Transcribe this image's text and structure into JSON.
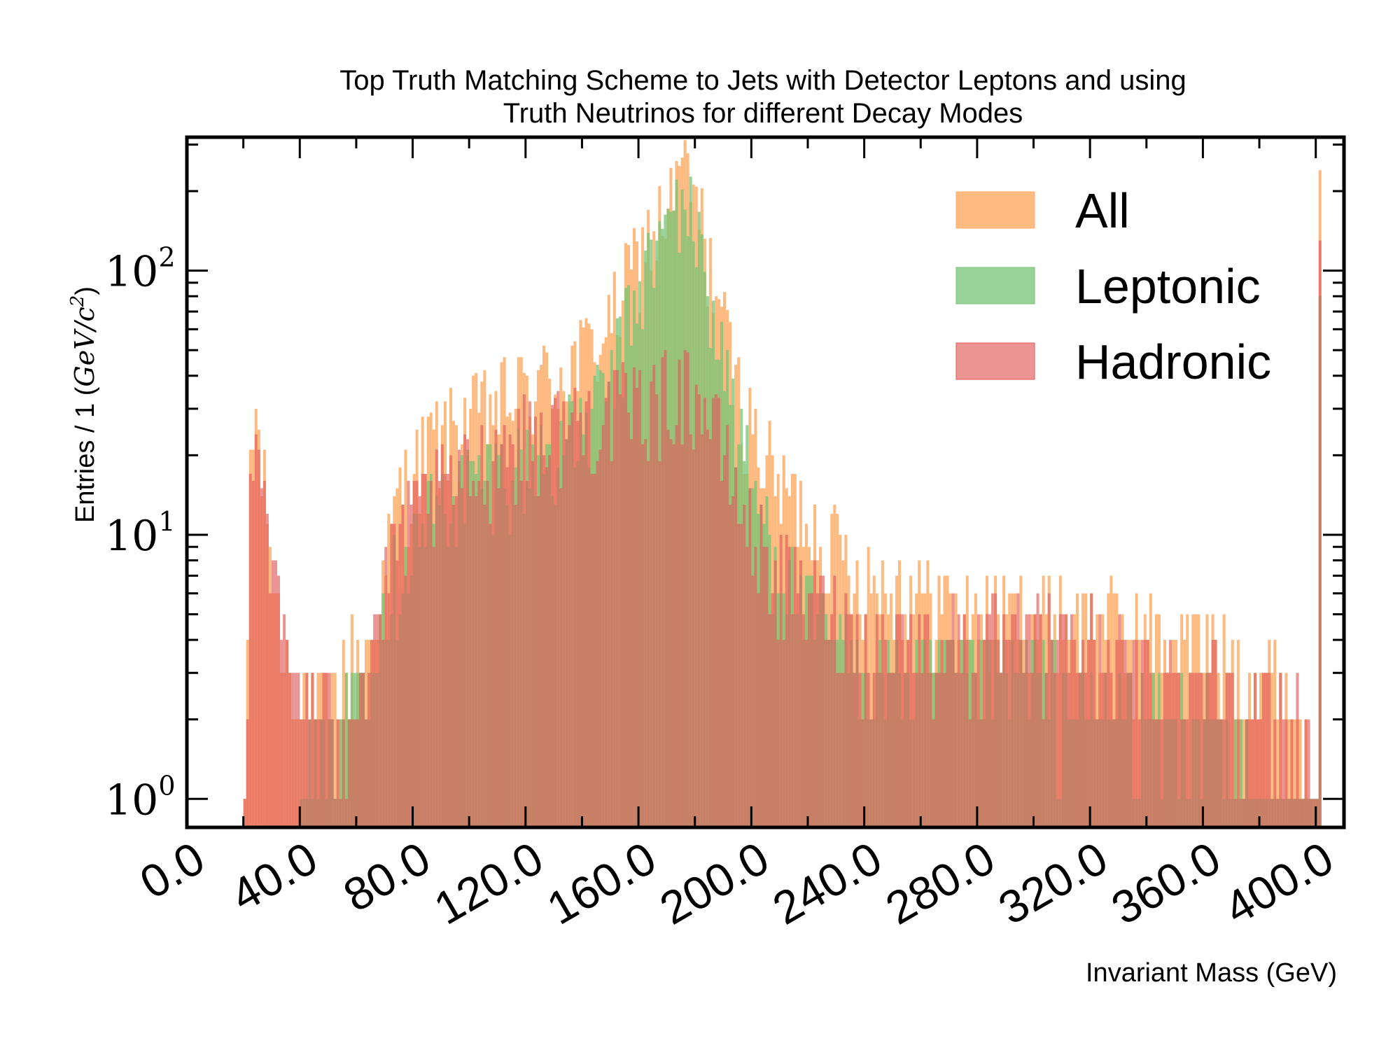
{
  "chart_data": {
    "type": "bar",
    "title_line1": "Top Truth Matching Scheme to Jets with Detector Leptons and using",
    "title_line2": "Truth Neutrinos for different Decay Modes",
    "xlabel": "Invariant Mass (GeV)",
    "ylabel_prefix": "Entries / 1 (",
    "ylabel_unit": "GeV/c",
    "ylabel_sup": "2",
    "ylabel_suffix": ")",
    "yscale": "log",
    "xlim": [
      0,
      410
    ],
    "ylim": [
      0.78,
      320
    ],
    "x_ticks": [
      "0.0",
      "40.0",
      "80.0",
      "120.0",
      "160.0",
      "200.0",
      "240.0",
      "280.0",
      "320.0",
      "360.0",
      "400.0"
    ],
    "y_ticks": [
      {
        "base": "10",
        "exp": "0",
        "value": 1
      },
      {
        "base": "10",
        "exp": "1",
        "value": 10
      },
      {
        "base": "10",
        "exp": "2",
        "value": 100
      }
    ],
    "bin_width": 1,
    "legend_position": "top-right",
    "series": [
      {
        "name": "All",
        "color": "#fdae6b",
        "opacity": 0.85,
        "envelope": [
          [
            20,
            1
          ],
          [
            22,
            20
          ],
          [
            24,
            28
          ],
          [
            28,
            12
          ],
          [
            32,
            5
          ],
          [
            36,
            3
          ],
          [
            45,
            2
          ],
          [
            55,
            3
          ],
          [
            65,
            4
          ],
          [
            75,
            15
          ],
          [
            85,
            22
          ],
          [
            95,
            26
          ],
          [
            110,
            32
          ],
          [
            125,
            38
          ],
          [
            140,
            48
          ],
          [
            150,
            65
          ],
          [
            160,
            120
          ],
          [
            170,
            170
          ],
          [
            175,
            250
          ],
          [
            180,
            180
          ],
          [
            185,
            110
          ],
          [
            190,
            60
          ],
          [
            195,
            35
          ],
          [
            200,
            25
          ],
          [
            210,
            15
          ],
          [
            220,
            12
          ],
          [
            230,
            9
          ],
          [
            240,
            7
          ],
          [
            260,
            6
          ],
          [
            280,
            5
          ],
          [
            300,
            5
          ],
          [
            320,
            5
          ],
          [
            340,
            4
          ],
          [
            360,
            4
          ],
          [
            380,
            3
          ],
          [
            395,
            2
          ],
          [
            400,
            1
          ],
          [
            401,
            240
          ],
          [
            402,
            0
          ]
        ]
      },
      {
        "name": "Leptonic",
        "color": "#74c476",
        "opacity": 0.75,
        "envelope": [
          [
            40,
            1
          ],
          [
            55,
            2
          ],
          [
            65,
            4
          ],
          [
            75,
            8
          ],
          [
            85,
            12
          ],
          [
            95,
            15
          ],
          [
            110,
            18
          ],
          [
            125,
            20
          ],
          [
            140,
            25
          ],
          [
            150,
            40
          ],
          [
            160,
            90
          ],
          [
            170,
            150
          ],
          [
            175,
            200
          ],
          [
            180,
            140
          ],
          [
            185,
            80
          ],
          [
            190,
            45
          ],
          [
            195,
            25
          ],
          [
            200,
            15
          ],
          [
            210,
            8
          ],
          [
            220,
            5
          ],
          [
            230,
            4
          ],
          [
            240,
            3
          ],
          [
            260,
            3
          ],
          [
            280,
            3
          ],
          [
            300,
            3
          ],
          [
            320,
            2
          ],
          [
            340,
            2
          ],
          [
            360,
            2
          ],
          [
            380,
            1
          ],
          [
            395,
            1
          ],
          [
            400,
            1
          ],
          [
            401,
            80
          ],
          [
            402,
            0
          ]
        ]
      },
      {
        "name": "Hadronic",
        "color": "#e05a5a",
        "opacity": 0.65,
        "envelope": [
          [
            20,
            1
          ],
          [
            22,
            20
          ],
          [
            24,
            28
          ],
          [
            28,
            12
          ],
          [
            32,
            5
          ],
          [
            36,
            3
          ],
          [
            45,
            2
          ],
          [
            55,
            2
          ],
          [
            65,
            4
          ],
          [
            75,
            10
          ],
          [
            85,
            14
          ],
          [
            95,
            16
          ],
          [
            110,
            22
          ],
          [
            125,
            25
          ],
          [
            140,
            28
          ],
          [
            150,
            30
          ],
          [
            160,
            32
          ],
          [
            170,
            35
          ],
          [
            175,
            38
          ],
          [
            180,
            34
          ],
          [
            185,
            28
          ],
          [
            190,
            20
          ],
          [
            195,
            14
          ],
          [
            200,
            10
          ],
          [
            210,
            7
          ],
          [
            220,
            6
          ],
          [
            230,
            5
          ],
          [
            240,
            4
          ],
          [
            260,
            4
          ],
          [
            280,
            4
          ],
          [
            300,
            4
          ],
          [
            320,
            4
          ],
          [
            340,
            3
          ],
          [
            360,
            3
          ],
          [
            380,
            2
          ],
          [
            395,
            2
          ],
          [
            400,
            1
          ],
          [
            401,
            130
          ],
          [
            402,
            0
          ]
        ]
      }
    ]
  }
}
